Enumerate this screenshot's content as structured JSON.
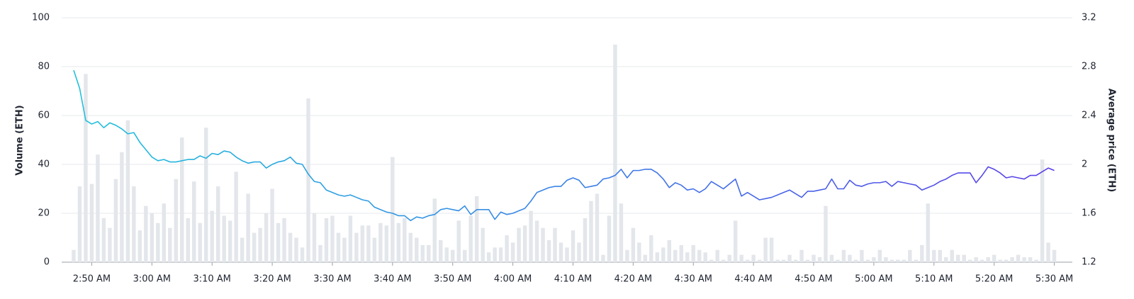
{
  "chart_data": {
    "type": "combo",
    "x": [
      "2:47",
      "2:48",
      "2:49",
      "2:50",
      "2:51",
      "2:52",
      "2:53",
      "2:54",
      "2:55",
      "2:56",
      "2:57",
      "2:58",
      "2:59",
      "3:00",
      "3:01",
      "3:02",
      "3:03",
      "3:04",
      "3:05",
      "3:06",
      "3:07",
      "3:08",
      "3:09",
      "3:10",
      "3:11",
      "3:12",
      "3:13",
      "3:14",
      "3:15",
      "3:16",
      "3:17",
      "3:18",
      "3:19",
      "3:20",
      "3:21",
      "3:22",
      "3:23",
      "3:24",
      "3:25",
      "3:26",
      "3:27",
      "3:28",
      "3:29",
      "3:30",
      "3:31",
      "3:32",
      "3:33",
      "3:34",
      "3:35",
      "3:36",
      "3:37",
      "3:38",
      "3:39",
      "3:40",
      "3:41",
      "3:42",
      "3:43",
      "3:44",
      "3:45",
      "3:46",
      "3:47",
      "3:48",
      "3:49",
      "3:50",
      "3:51",
      "3:52",
      "3:53",
      "3:54",
      "3:55",
      "3:56",
      "3:57",
      "3:58",
      "3:59",
      "4:00",
      "4:01",
      "4:02",
      "4:03",
      "4:04",
      "4:05",
      "4:06",
      "4:07",
      "4:08",
      "4:09",
      "4:10",
      "4:11",
      "4:12",
      "4:13",
      "4:14",
      "4:15",
      "4:16",
      "4:17",
      "4:18",
      "4:19",
      "4:20",
      "4:21",
      "4:22",
      "4:23",
      "4:24",
      "4:25",
      "4:26",
      "4:27",
      "4:28",
      "4:29",
      "4:30",
      "4:31",
      "4:32",
      "4:33",
      "4:34",
      "4:35",
      "4:36",
      "4:37",
      "4:38",
      "4:39",
      "4:40",
      "4:41",
      "4:42",
      "4:43",
      "4:44",
      "4:45",
      "4:46",
      "4:47",
      "4:48",
      "4:49",
      "4:50",
      "4:51",
      "4:52",
      "4:53",
      "4:54",
      "4:55",
      "4:56",
      "4:57",
      "4:58",
      "4:59",
      "5:00",
      "5:01",
      "5:02",
      "5:03",
      "5:04",
      "5:05",
      "5:06",
      "5:07",
      "5:08",
      "5:09",
      "5:10",
      "5:11",
      "5:12",
      "5:13",
      "5:14",
      "5:15",
      "5:16",
      "5:17",
      "5:18",
      "5:19",
      "5:20",
      "5:21",
      "5:22",
      "5:23",
      "5:24",
      "5:25",
      "5:26",
      "5:27",
      "5:28",
      "5:29",
      "5:30"
    ],
    "xlim": [
      "2:45",
      "5:33"
    ],
    "xticks": [
      {
        "value": "2:50",
        "label": "2:50 AM"
      },
      {
        "value": "3:00",
        "label": "3:00 AM"
      },
      {
        "value": "3:10",
        "label": "3:10 AM"
      },
      {
        "value": "3:20",
        "label": "3:20 AM"
      },
      {
        "value": "3:30",
        "label": "3:30 AM"
      },
      {
        "value": "3:40",
        "label": "3:40 AM"
      },
      {
        "value": "3:50",
        "label": "3:50 AM"
      },
      {
        "value": "4:00",
        "label": "4:00 AM"
      },
      {
        "value": "4:10",
        "label": "4:10 AM"
      },
      {
        "value": "4:20",
        "label": "4:20 AM"
      },
      {
        "value": "4:30",
        "label": "4:30 AM"
      },
      {
        "value": "4:40",
        "label": "4:40 AM"
      },
      {
        "value": "4:50",
        "label": "4:50 AM"
      },
      {
        "value": "5:00",
        "label": "5:00 AM"
      },
      {
        "value": "5:10",
        "label": "5:10 AM"
      },
      {
        "value": "5:20",
        "label": "5:20 AM"
      },
      {
        "value": "5:30",
        "label": "5:30 AM"
      }
    ],
    "ylabel": "Volume (ETH)",
    "ylim": [
      0,
      100
    ],
    "yticks": [
      0,
      20,
      40,
      60,
      80,
      100
    ],
    "y2label": "Average price (ETH)",
    "y2lim": [
      1.2,
      3.2
    ],
    "y2ticks": [
      1.2,
      1.6,
      2,
      2.4,
      2.8,
      3.2
    ],
    "grid": true,
    "series": [
      {
        "type": "bar",
        "color": "#e3e6ea",
        "values": [
          5,
          31,
          77,
          32,
          44,
          18,
          14,
          34,
          45,
          58,
          31,
          13,
          23,
          20,
          16,
          24,
          14,
          34,
          51,
          18,
          33,
          16,
          55,
          21,
          31,
          19,
          17,
          37,
          10,
          28,
          12,
          14,
          20,
          30,
          16,
          18,
          12,
          10,
          6,
          67,
          20,
          7,
          18,
          19,
          12,
          10,
          19,
          12,
          15,
          15,
          10,
          16,
          15,
          43,
          16,
          18,
          12,
          10,
          7,
          7,
          26,
          9,
          6,
          5,
          17,
          5,
          19,
          27,
          14,
          4,
          6,
          6,
          11,
          8,
          14,
          15,
          21,
          17,
          14,
          9,
          14,
          8,
          6,
          13,
          8,
          18,
          25,
          28,
          3,
          19,
          89,
          24,
          5,
          14,
          8,
          3,
          11,
          4,
          6,
          9,
          5,
          7,
          4,
          7,
          5,
          4,
          1,
          5,
          1,
          3,
          17,
          3,
          1,
          3,
          1,
          10,
          10,
          1,
          1,
          3,
          1,
          5,
          1,
          3,
          2,
          23,
          3,
          1,
          5,
          3,
          1,
          5,
          1,
          2,
          5,
          2,
          1,
          1,
          1,
          5,
          1,
          7,
          24,
          5,
          5,
          2,
          5,
          3,
          3,
          1,
          2,
          1,
          2,
          3,
          1,
          1,
          2,
          3,
          2,
          2,
          1,
          42,
          8,
          5
        ]
      },
      {
        "type": "line",
        "axis": "y2",
        "color": [
          "#1fc3db",
          "#3b82e6",
          "#5b3ce8"
        ],
        "values": [
          2.77,
          2.62,
          2.36,
          2.33,
          2.35,
          2.3,
          2.34,
          2.32,
          2.29,
          2.25,
          2.26,
          2.18,
          2.12,
          2.06,
          2.03,
          2.04,
          2.02,
          2.02,
          2.03,
          2.04,
          2.04,
          2.07,
          2.05,
          2.09,
          2.08,
          2.11,
          2.1,
          2.06,
          2.03,
          2.01,
          2.02,
          2.02,
          1.97,
          2.0,
          2.02,
          2.03,
          2.06,
          2.01,
          2.0,
          1.92,
          1.86,
          1.85,
          1.79,
          1.77,
          1.75,
          1.74,
          1.75,
          1.73,
          1.71,
          1.7,
          1.65,
          1.63,
          1.61,
          1.6,
          1.58,
          1.58,
          1.54,
          1.57,
          1.56,
          1.58,
          1.59,
          1.63,
          1.64,
          1.63,
          1.62,
          1.66,
          1.59,
          1.63,
          1.63,
          1.63,
          1.55,
          1.61,
          1.59,
          1.6,
          1.62,
          1.64,
          1.7,
          1.77,
          1.79,
          1.81,
          1.82,
          1.82,
          1.87,
          1.89,
          1.87,
          1.81,
          1.82,
          1.83,
          1.88,
          1.89,
          1.91,
          1.96,
          1.89,
          1.95,
          1.95,
          1.96,
          1.96,
          1.93,
          1.88,
          1.81,
          1.85,
          1.83,
          1.79,
          1.8,
          1.77,
          1.8,
          1.86,
          1.83,
          1.8,
          1.84,
          1.88,
          1.74,
          1.77,
          1.74,
          1.71,
          1.72,
          1.73,
          1.75,
          1.77,
          1.79,
          1.76,
          1.73,
          1.78,
          1.78,
          1.79,
          1.8,
          1.88,
          1.8,
          1.8,
          1.87,
          1.83,
          1.82,
          1.84,
          1.85,
          1.85,
          1.86,
          1.82,
          1.86,
          1.85,
          1.84,
          1.83,
          1.79,
          1.81,
          1.83,
          1.86,
          1.88,
          1.91,
          1.93,
          1.93,
          1.93,
          1.85,
          1.91,
          1.98,
          1.96,
          1.93,
          1.89,
          1.9,
          1.89,
          1.88,
          1.91,
          1.91,
          1.94,
          1.97,
          1.95
        ]
      }
    ]
  }
}
